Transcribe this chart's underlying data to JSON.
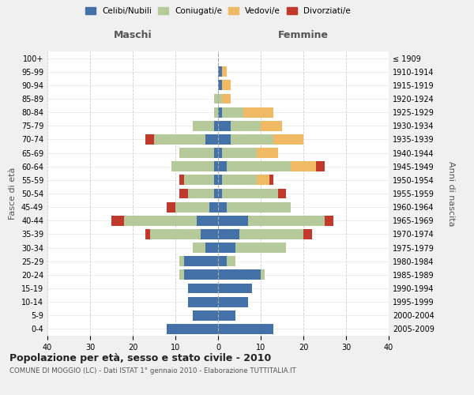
{
  "age_groups": [
    "0-4",
    "5-9",
    "10-14",
    "15-19",
    "20-24",
    "25-29",
    "30-34",
    "35-39",
    "40-44",
    "45-49",
    "50-54",
    "55-59",
    "60-64",
    "65-69",
    "70-74",
    "75-79",
    "80-84",
    "85-89",
    "90-94",
    "95-99",
    "100+"
  ],
  "birth_years": [
    "2005-2009",
    "2000-2004",
    "1995-1999",
    "1990-1994",
    "1985-1989",
    "1980-1984",
    "1975-1979",
    "1970-1974",
    "1965-1969",
    "1960-1964",
    "1955-1959",
    "1950-1954",
    "1945-1949",
    "1940-1944",
    "1935-1939",
    "1930-1934",
    "1925-1929",
    "1920-1924",
    "1915-1919",
    "1910-1914",
    "≤ 1909"
  ],
  "colors": {
    "celibi": "#4472a8",
    "coniugati": "#b5c99a",
    "vedovi": "#f0b963",
    "divorziati": "#c0392b"
  },
  "maschi": {
    "celibi": [
      12,
      6,
      7,
      7,
      8,
      8,
      3,
      4,
      5,
      2,
      1,
      1,
      1,
      1,
      3,
      1,
      0,
      0,
      0,
      0,
      0
    ],
    "coniugati": [
      0,
      0,
      0,
      0,
      1,
      1,
      3,
      12,
      17,
      8,
      6,
      7,
      10,
      8,
      12,
      5,
      1,
      1,
      0,
      0,
      0
    ],
    "vedovi": [
      0,
      0,
      0,
      0,
      0,
      0,
      0,
      0,
      0,
      0,
      0,
      0,
      0,
      0,
      0,
      0,
      0,
      0,
      0,
      0,
      0
    ],
    "divorziati": [
      0,
      0,
      0,
      0,
      0,
      0,
      0,
      1,
      3,
      2,
      2,
      1,
      0,
      0,
      2,
      0,
      0,
      0,
      0,
      0,
      0
    ]
  },
  "femmine": {
    "celibi": [
      13,
      4,
      7,
      8,
      10,
      2,
      4,
      5,
      7,
      2,
      1,
      1,
      2,
      1,
      3,
      3,
      1,
      0,
      1,
      1,
      0
    ],
    "coniugati": [
      0,
      0,
      0,
      0,
      1,
      2,
      12,
      15,
      18,
      15,
      13,
      8,
      15,
      8,
      10,
      7,
      5,
      1,
      0,
      0,
      0
    ],
    "vedovi": [
      0,
      0,
      0,
      0,
      0,
      0,
      0,
      0,
      0,
      0,
      0,
      3,
      6,
      5,
      7,
      5,
      7,
      2,
      2,
      1,
      0
    ],
    "divorziati": [
      0,
      0,
      0,
      0,
      0,
      0,
      0,
      2,
      2,
      0,
      2,
      1,
      2,
      0,
      0,
      0,
      0,
      0,
      0,
      0,
      0
    ]
  },
  "xlim": 40,
  "title": "Popolazione per età, sesso e stato civile - 2010",
  "subtitle": "COMUNE DI MOGGIO (LC) - Dati ISTAT 1° gennaio 2010 - Elaborazione TUTTITALIA.IT",
  "ylabel_left": "Fasce di età",
  "ylabel_right": "Anni di nascita",
  "xlabel_maschi": "Maschi",
  "xlabel_femmine": "Femmine",
  "legend_labels": [
    "Celibi/Nubili",
    "Coniugati/e",
    "Vedovi/e",
    "Divorziati/e"
  ],
  "background_color": "#f0f0f0",
  "plot_bg_color": "#ffffff"
}
